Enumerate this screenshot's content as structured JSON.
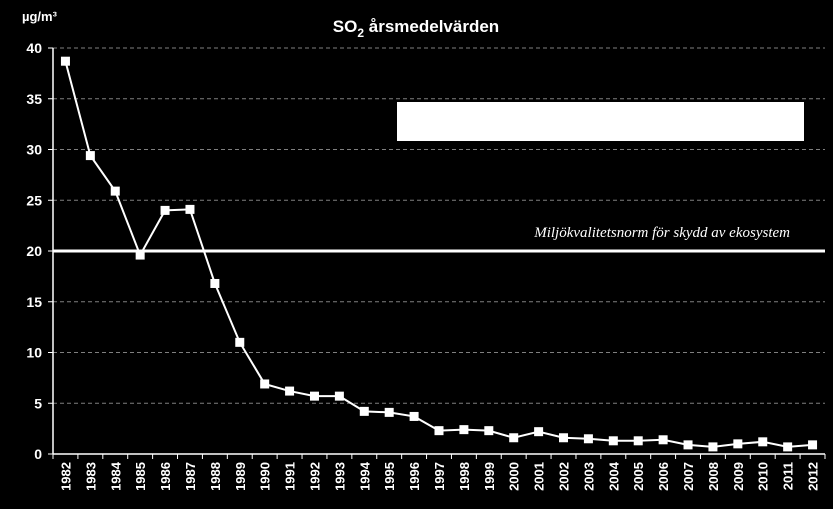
{
  "chart_data": {
    "type": "line",
    "title": "SO",
    "title_subscript": "2",
    "title_rest": " årsmedelvärden",
    "ylabel": "µg/m³",
    "xlabel": "",
    "ylim": [
      0,
      40
    ],
    "y_ticks": [
      0,
      5,
      10,
      15,
      20,
      25,
      30,
      35,
      40
    ],
    "grid": "horizontal dashed",
    "categories": [
      "1982",
      "1983",
      "1984",
      "1985",
      "1986",
      "1987",
      "1988",
      "1989",
      "1990",
      "1991",
      "1992",
      "1993",
      "1994",
      "1995",
      "1996",
      "1997",
      "1998",
      "1999",
      "2000",
      "2001",
      "2002",
      "2003",
      "2004",
      "2005",
      "2006",
      "2007",
      "2008",
      "2009",
      "2010",
      "2011",
      "2012"
    ],
    "series": [
      {
        "values": [
          38.7,
          29.4,
          25.9,
          19.6,
          24.0,
          24.1,
          16.8,
          11.0,
          6.9,
          6.2,
          5.7,
          5.7,
          4.2,
          4.1,
          3.7,
          2.3,
          2.4,
          2.3,
          1.6,
          2.2,
          1.6,
          1.5,
          1.3,
          1.3,
          1.4,
          0.9,
          0.7,
          1.0,
          1.2,
          0.7,
          0.9
        ],
        "color": "#ffffff",
        "marker": "square"
      }
    ],
    "reference_line": {
      "value": 20,
      "label": "Miljökvalitetsnorm för skydd av ekosystem",
      "color": "#ffffff"
    },
    "overlay_box_color": "#ffffff",
    "background": "#000000",
    "grid_color": "#7f7f7f"
  }
}
